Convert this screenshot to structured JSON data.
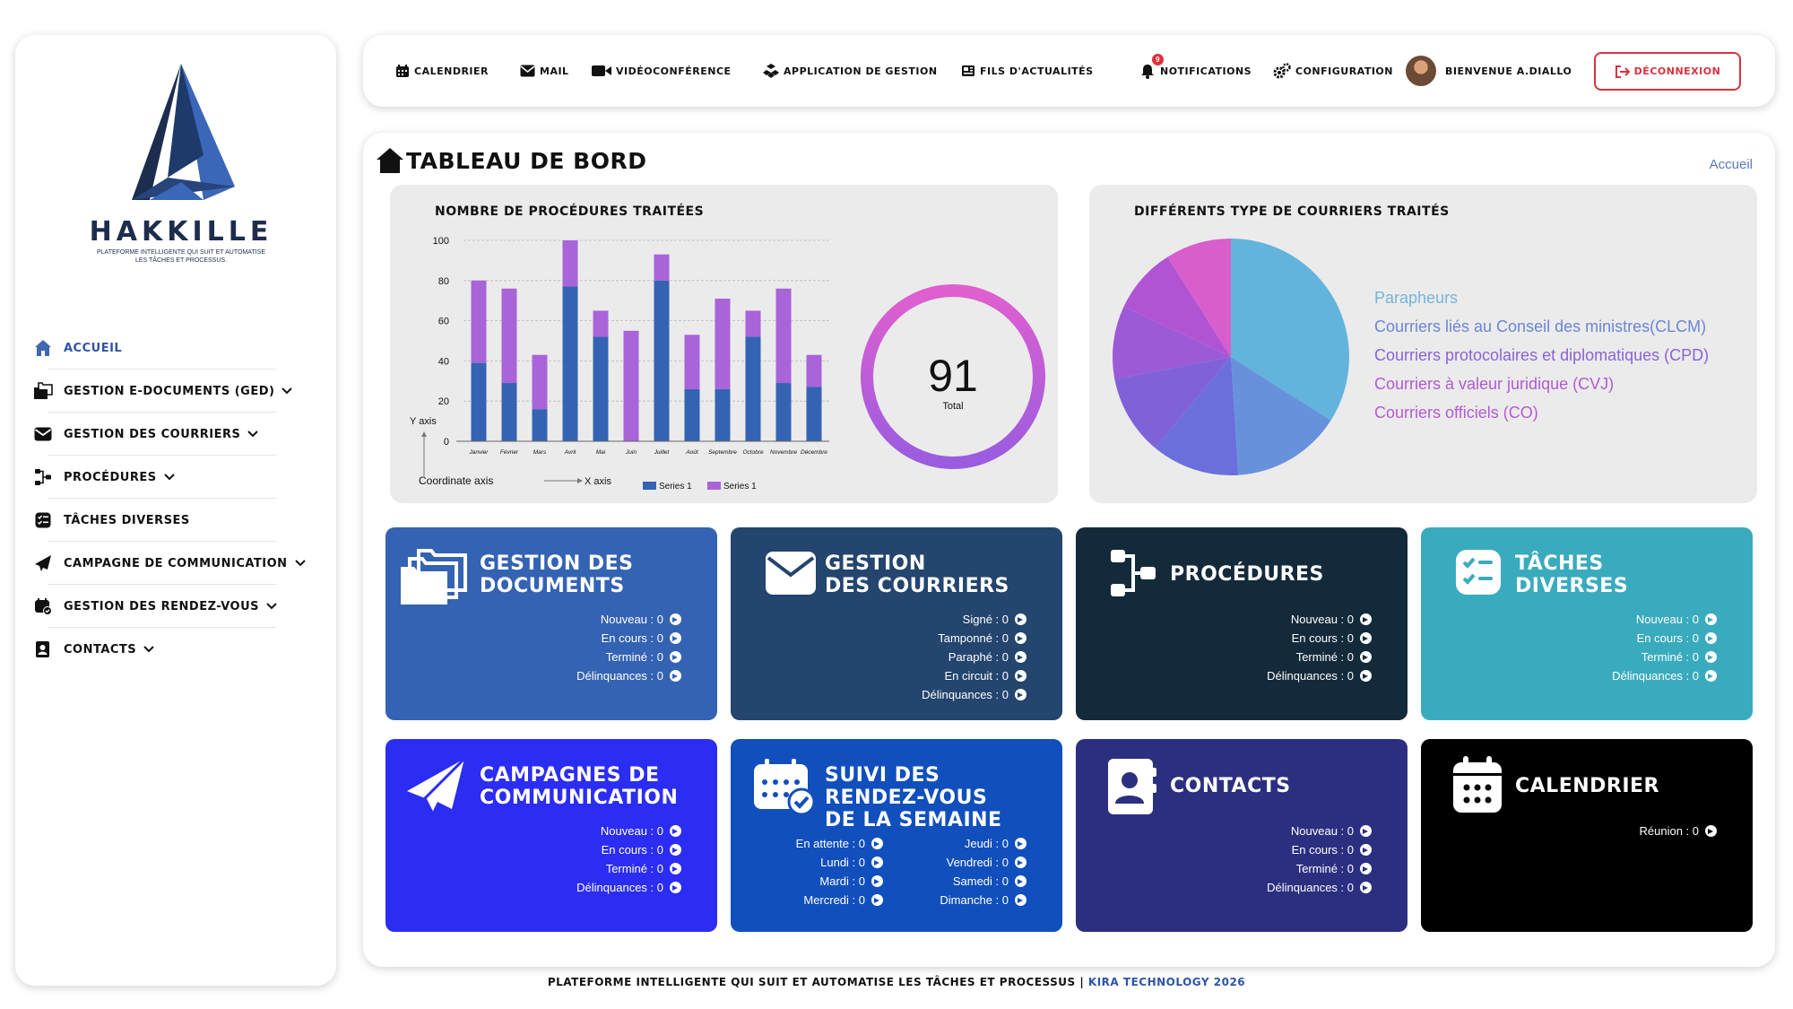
{
  "brand": {
    "name": "HAKKILLE",
    "tagline": "Plateforme intelligente qui suit et automatise les tâches et processus."
  },
  "sidebar": {
    "items": [
      {
        "label": "Accueil",
        "icon": "home-icon",
        "active": true,
        "chevron": false
      },
      {
        "label": "Gestion e-documents (GED)",
        "icon": "folders-icon",
        "chevron": true
      },
      {
        "label": "Gestion des courriers",
        "icon": "envelope-icon",
        "chevron": true
      },
      {
        "label": "Procédures",
        "icon": "flow-icon",
        "chevron": true
      },
      {
        "label": "Tâches diverses",
        "icon": "tasks-icon",
        "chevron": false
      },
      {
        "label": "Campagne de communication",
        "icon": "paper-plane-icon",
        "chevron": true
      },
      {
        "label": "Gestion des rendez-vous",
        "icon": "calendar-check-icon",
        "chevron": true
      },
      {
        "label": "Contacts",
        "icon": "contact-card-icon",
        "chevron": true
      }
    ]
  },
  "topbar": {
    "calendar": "Calendrier",
    "mail": "Mail",
    "video": "Vidéoconférence",
    "app": "Application de gestion",
    "news": "Fils d'actualités",
    "notifications": "Notifications",
    "notification_count": "9",
    "config": "Configuration",
    "welcome": "Bienvenue A.Diallo",
    "logout": "Déconnexion"
  },
  "page": {
    "title": "Tableau de bord",
    "breadcrumb": "Accueil"
  },
  "chart_data": [
    {
      "type": "bar",
      "title": "Nombre de procédures traitées",
      "categories": [
        "Janvier",
        "Février",
        "Mars",
        "Avril",
        "Mai",
        "Juin",
        "Juillet",
        "Août",
        "Septembre",
        "Octobre",
        "Novembre",
        "Décembre"
      ],
      "series": [
        {
          "name": "Series 1",
          "color": "#3563b3",
          "values": [
            39,
            29,
            16,
            77,
            52,
            0,
            80,
            26,
            26,
            52,
            29,
            27
          ]
        },
        {
          "name": "Series 1",
          "color": "#a864d8",
          "values": [
            41,
            47,
            27,
            23,
            13,
            55,
            13,
            27,
            45,
            13,
            47,
            16
          ]
        }
      ],
      "ylim": [
        0,
        100
      ],
      "yticks": [
        0,
        20,
        40,
        60,
        80,
        100
      ],
      "ylabel": "Y axis",
      "xlabel": "X axis",
      "axis_caption": "Coordinate axis",
      "stacked": true,
      "legend": "bottom",
      "donut": {
        "value": "91",
        "label": "Total"
      }
    },
    {
      "type": "pie",
      "title": "Différents type de courriers traités",
      "slices": [
        {
          "label": "Parapheurs",
          "value": 34,
          "color": "#62b4dd"
        },
        {
          "label": "Courriers liés au Conseil des ministres(CLCM)",
          "value": 15,
          "color": "#6891dc"
        },
        {
          "label": "Courriers protocolaires et diplomatiques (CPD)",
          "value": 12,
          "color": "#6a6fdb"
        },
        {
          "label": "Courriers à valeur juridique (CVJ)",
          "value": 11,
          "color": "#8062d8"
        },
        {
          "label": "Courriers officiels (CO)",
          "value": 10,
          "color": "#9c5ad6"
        },
        {
          "label": "",
          "value": 9,
          "color": "#b154d4"
        },
        {
          "label": "",
          "value": 9,
          "color": "#d85ecd"
        }
      ],
      "legend_colors": [
        "#73b6dc",
        "#6b86d6",
        "#8a63d6",
        "#b25ad3",
        "#b55bd4"
      ]
    }
  ],
  "tiles": {
    "documents": {
      "title1": "Gestion des",
      "title2": "documents",
      "stats": [
        "Nouveau : 0",
        "En cours : 0",
        "Terminé : 0",
        "Délinquances : 0"
      ]
    },
    "courriers": {
      "title1": "Gestion",
      "title2": "des courriers",
      "stats": [
        "Signé : 0",
        "Tamponné : 0",
        "Paraphé : 0",
        "En circuit : 0",
        "Délinquances : 0"
      ]
    },
    "procedures": {
      "title1": "Procédures",
      "stats": [
        "Nouveau : 0",
        "En cours : 0",
        "Terminé : 0",
        "Délinquances : 0"
      ]
    },
    "taches": {
      "title1": "Tâches",
      "title2": "diverses",
      "stats": [
        "Nouveau : 0",
        "En cours : 0",
        "Terminé : 0",
        "Délinquances : 0"
      ]
    },
    "campagnes": {
      "title1": "Campagnes de",
      "title2": "communication",
      "stats": [
        "Nouveau : 0",
        "En cours : 0",
        "Terminé : 0",
        "Délinquances : 0"
      ]
    },
    "rdv": {
      "title1": "Suivi des",
      "title2": "rendez-vous",
      "title3": "de la semaine",
      "left": [
        "En attente : 0",
        "Lundi : 0",
        "Mardi : 0",
        "Mercredi : 0"
      ],
      "right": [
        "Jeudi : 0",
        "Vendredi : 0",
        "Samedi : 0",
        "Dimanche : 0"
      ]
    },
    "contacts": {
      "title1": "Contacts",
      "stats": [
        "Nouveau : 0",
        "En cours : 0",
        "Terminé : 0",
        "Délinquances : 0"
      ]
    },
    "calendrier": {
      "title1": "Calendrier",
      "stats": [
        "Réunion : 0"
      ]
    }
  },
  "colors": {
    "documents": "#3563b3",
    "courriers": "#23456e",
    "procedures": "#132a3b",
    "taches": "#3aabbe",
    "campagnes": "#2c2df2",
    "rdv": "#114fbd",
    "contacts": "#2c2f80",
    "calendrier": "#000000"
  },
  "footer": {
    "text": "Plateforme intelligente qui suit et automatise les tâches et processus |",
    "brand": "Kira Technology 2026"
  }
}
